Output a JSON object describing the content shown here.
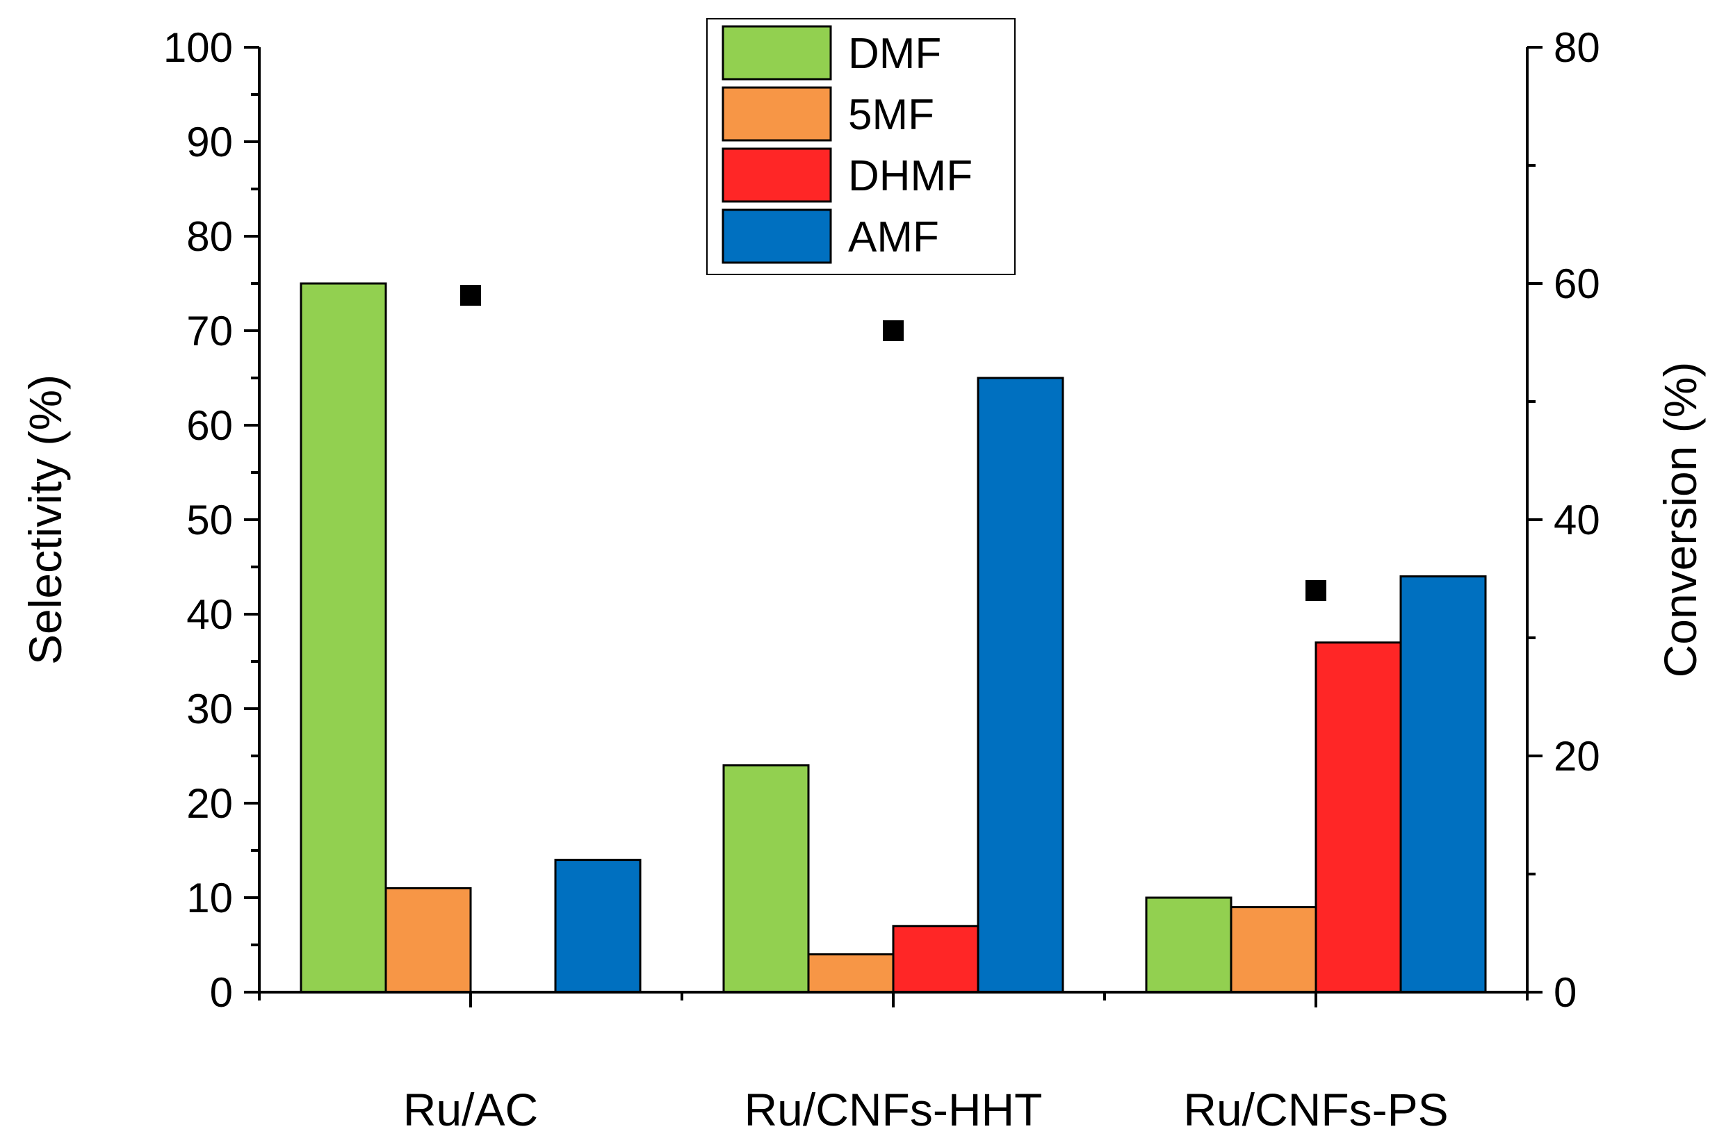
{
  "chart_data": {
    "type": "bar",
    "categories": [
      "Ru/AC",
      "Ru/CNFs-HHT",
      "Ru/CNFs-PS"
    ],
    "series": [
      {
        "name": "DMF",
        "values": [
          75,
          24,
          10
        ],
        "color": "#92d050"
      },
      {
        "name": "5MF",
        "values": [
          11,
          4,
          9
        ],
        "color": "#f79646"
      },
      {
        "name": "DHMF",
        "values": [
          0,
          7,
          37
        ],
        "color": "#ff2626"
      },
      {
        "name": "AMF",
        "values": [
          14,
          65,
          44
        ],
        "color": "#0070c0"
      }
    ],
    "conversion": {
      "values": [
        59,
        56,
        34
      ],
      "color": "#000000",
      "marker": "square"
    },
    "ylabel": "Selectivity (%)",
    "ylim": [
      0,
      100
    ],
    "yticks": [
      "0",
      "10",
      "20",
      "30",
      "40",
      "50",
      "60",
      "70",
      "80",
      "90",
      "100"
    ],
    "y2label": "Conversion (%)",
    "y2lim": [
      0,
      80
    ],
    "y2ticks": [
      "0",
      "20",
      "40",
      "60",
      "80"
    ],
    "legend_position": "top-center"
  }
}
